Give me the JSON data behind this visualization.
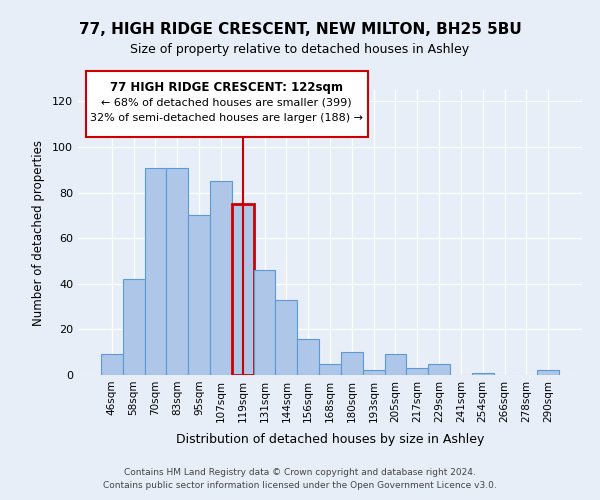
{
  "title": "77, HIGH RIDGE CRESCENT, NEW MILTON, BH25 5BU",
  "subtitle": "Size of property relative to detached houses in Ashley",
  "xlabel": "Distribution of detached houses by size in Ashley",
  "ylabel": "Number of detached properties",
  "bar_labels": [
    "46sqm",
    "58sqm",
    "70sqm",
    "83sqm",
    "95sqm",
    "107sqm",
    "119sqm",
    "131sqm",
    "144sqm",
    "156sqm",
    "168sqm",
    "180sqm",
    "193sqm",
    "205sqm",
    "217sqm",
    "229sqm",
    "241sqm",
    "254sqm",
    "266sqm",
    "278sqm",
    "290sqm"
  ],
  "bar_values": [
    9,
    42,
    91,
    91,
    70,
    85,
    75,
    46,
    33,
    16,
    5,
    10,
    2,
    9,
    3,
    5,
    0,
    1,
    0,
    0,
    2
  ],
  "bar_color": "#aec6e8",
  "bar_edge_color": "#5b9bd5",
  "highlight_index": 6,
  "highlight_edge_color": "#cc0000",
  "vline_color": "#cc0000",
  "ylim": [
    0,
    125
  ],
  "yticks": [
    0,
    20,
    40,
    60,
    80,
    100,
    120
  ],
  "annotation_title": "77 HIGH RIDGE CRESCENT: 122sqm",
  "annotation_line1": "← 68% of detached houses are smaller (399)",
  "annotation_line2": "32% of semi-detached houses are larger (188) →",
  "annotation_box_color": "#ffffff",
  "annotation_box_edge": "#cc0000",
  "footer_line1": "Contains HM Land Registry data © Crown copyright and database right 2024.",
  "footer_line2": "Contains public sector information licensed under the Open Government Licence v3.0.",
  "bg_color": "#e8eef8"
}
